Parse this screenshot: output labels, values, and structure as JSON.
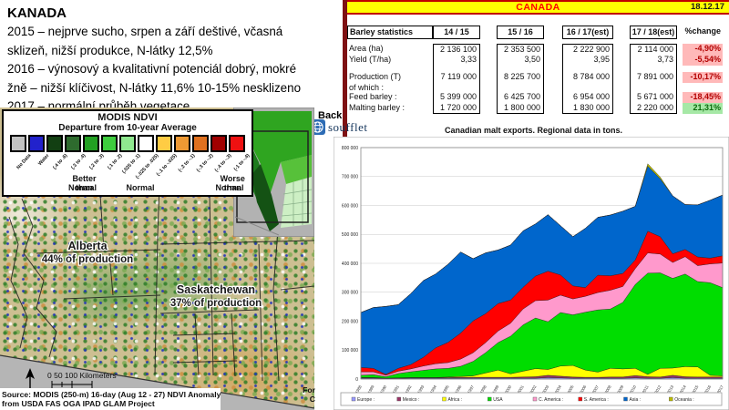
{
  "slide": {
    "title": "KANADA",
    "lines": [
      "2015 – nejprve sucho, srpen a září deštivé, včasná",
      "sklizeň, nižší produkce,  N-látky 12,5%",
      "2016 – výnosový a kvalitativní potenciál dobrý, mokré",
      "žně – nižší klíčivost, N-látky 11,6% 10-15% nesklizeno",
      "2017 – normální průběh vegetace"
    ]
  },
  "header": {
    "title": "CANADA",
    "date": "18.12.17"
  },
  "table": {
    "col_headers": [
      "Barley statistics",
      "14 / 15",
      "15 / 16",
      "16 / 17(est)",
      "17 / 18(est)",
      "%change"
    ],
    "rows": [
      {
        "label": "Area (ha)",
        "values": [
          "2 136 100",
          "2 353 500",
          "2 222 900",
          "2 114 000"
        ],
        "change": "-4,90%",
        "change_type": "neg"
      },
      {
        "label": "Yield (T/ha)",
        "values": [
          "3,33",
          "3,50",
          "3,95",
          "3,73"
        ],
        "change": "-5,54%",
        "change_type": "neg"
      },
      {
        "label": "",
        "values": [
          "",
          "",
          "",
          ""
        ],
        "change": "",
        "change_type": "none"
      },
      {
        "label": "Production (T)",
        "values": [
          "7 119 000",
          "8 225 700",
          "8 784 000",
          "7 891 000"
        ],
        "change": "-10,17%",
        "change_type": "neg"
      },
      {
        "label": "of which :",
        "values": [
          "",
          "",
          "",
          ""
        ],
        "change": "",
        "change_type": "none"
      },
      {
        "label": "Feed barley :",
        "values": [
          "5 399 000",
          "6 425 700",
          "6 954 000",
          "5 671 000"
        ],
        "change": "-18,45%",
        "change_type": "neg"
      },
      {
        "label": "Malting barley :",
        "values": [
          "1 720 000",
          "1 800 000",
          "1 830 000",
          "2 220 000"
        ],
        "change": "21,31%",
        "change_type": "pos"
      }
    ]
  },
  "logo": {
    "back_label": "Back",
    "text": "soufflet"
  },
  "chart_caption": "Canadian malt exports. Regional data in tons.",
  "map": {
    "legend_title": "MODIS NDVI",
    "legend_subtitle": "Departure from 10-year Average",
    "swatches": [
      {
        "label": "No Data",
        "color": "#c2c2c2"
      },
      {
        "label": "Water",
        "color": "#2222cc"
      },
      {
        "label": "(.4 to .6)",
        "color": "#123f12"
      },
      {
        "label": "(.3 to .4)",
        "color": "#2e6b2e"
      },
      {
        "label": "(.2 to .3)",
        "color": "#22a022"
      },
      {
        "label": "(.1 to .2)",
        "color": "#3ecc3e"
      },
      {
        "label": "(.025 to .1)",
        "color": "#8fe88f"
      },
      {
        "label": "(-.025 to .025)",
        "color": "#ffffff"
      },
      {
        "label": "(-.1 to -.025)",
        "color": "#ffcc44"
      },
      {
        "label": "(-.2 to -.1)",
        "color": "#ee9933"
      },
      {
        "label": "(-.3 to -.2)",
        "color": "#e0711f"
      },
      {
        "label": "(-.4 to -.3)",
        "color": "#a00000"
      },
      {
        "label": "(-1 to -.4)",
        "color": "#ee1111"
      }
    ],
    "scale_better": "Better than",
    "scale_better2": "Normal",
    "scale_normal": "Normal",
    "scale_worse": "Worse than",
    "scale_worse2": "Normal",
    "alberta_name": "Alberta",
    "alberta_sub": "44% of production",
    "sask_name": "Saskatchewan",
    "sask_sub": "37% of production",
    "scalebar_label": "0   50  100 Kilometers",
    "source_line1": "Source: MODIS (250-m) 16-day (Aug 12 - 27) NDVI Anomaly",
    "source_line2": "from USDA FAS OGA IPAD GLAM Project",
    "cut_line1": "For",
    "cut_line2": "C"
  },
  "chart_data": {
    "type": "area",
    "stacked": true,
    "title": "Canadian malt exports. Regional data in tons.",
    "x": [
      "1988",
      "1989",
      "1990",
      "1991",
      "1992",
      "1993",
      "1994",
      "1995",
      "1996",
      "1997",
      "1998",
      "1999",
      "2000",
      "2001",
      "2002",
      "2003",
      "2004",
      "2005",
      "2006",
      "2007",
      "2008",
      "2009",
      "2010",
      "2011",
      "2012",
      "2013",
      "2014",
      "2015",
      "2016",
      "2017"
    ],
    "ylim": [
      0,
      800000
    ],
    "ytick_step": 100000,
    "grid": true,
    "legend_position": "bottom",
    "series": [
      {
        "name": "Europe",
        "legend": "Europe :",
        "color": "#9999ff",
        "values": [
          3000,
          3000,
          2000,
          2000,
          3000,
          3000,
          3000,
          3000,
          3000,
          3000,
          3000,
          3000,
          3000,
          3000,
          3000,
          5000,
          4000,
          3000,
          3000,
          3000,
          3000,
          3000,
          4000,
          3000,
          3000,
          5000,
          3000,
          3000,
          3000,
          3000
        ]
      },
      {
        "name": "Mexico",
        "legend": "Mexico :",
        "color": "#993366",
        "values": [
          2000,
          2000,
          1000,
          2000,
          2000,
          2000,
          2000,
          2000,
          3000,
          3000,
          3000,
          3000,
          3000,
          4000,
          5000,
          8000,
          6000,
          4000,
          3000,
          3000,
          4000,
          4000,
          8000,
          5000,
          4000,
          8000,
          5000,
          4000,
          4000,
          4000
        ]
      },
      {
        "name": "Africa",
        "legend": "Africa :",
        "color": "#ffff00",
        "values": [
          0,
          0,
          0,
          0,
          0,
          0,
          0,
          2000,
          3000,
          5000,
          15000,
          25000,
          12000,
          20000,
          28000,
          20000,
          35000,
          40000,
          25000,
          18000,
          30000,
          28000,
          25000,
          8000,
          30000,
          25000,
          35000,
          35000,
          6000,
          4000
        ]
      },
      {
        "name": "USA",
        "legend": "USA",
        "color": "#00dd00",
        "values": [
          8000,
          10000,
          5000,
          15000,
          20000,
          25000,
          30000,
          30000,
          35000,
          50000,
          70000,
          95000,
          130000,
          160000,
          175000,
          165000,
          185000,
          175000,
          200000,
          215000,
          205000,
          230000,
          290000,
          350000,
          330000,
          310000,
          320000,
          295000,
          320000,
          305000
        ]
      },
      {
        "name": "C. America",
        "legend": "C. America :",
        "color": "#ff99cc",
        "values": [
          12000,
          10000,
          5000,
          8000,
          10000,
          15000,
          18000,
          20000,
          25000,
          30000,
          35000,
          40000,
          45000,
          55000,
          60000,
          75000,
          60000,
          55000,
          55000,
          60000,
          65000,
          55000,
          55000,
          70000,
          65000,
          55000,
          60000,
          55000,
          65000,
          85000
        ]
      },
      {
        "name": "S. America",
        "legend": "S. America :",
        "color": "#ff0000",
        "values": [
          15000,
          12000,
          3000,
          10000,
          15000,
          30000,
          55000,
          70000,
          90000,
          110000,
          100000,
          95000,
          80000,
          75000,
          85000,
          100000,
          70000,
          45000,
          30000,
          60000,
          50000,
          45000,
          30000,
          75000,
          60000,
          30000,
          25000,
          30000,
          20000,
          25000
        ]
      },
      {
        "name": "Asia",
        "legend": "Asia :",
        "color": "#0066cc",
        "values": [
          190000,
          210000,
          235000,
          220000,
          245000,
          265000,
          255000,
          270000,
          280000,
          215000,
          210000,
          185000,
          190000,
          195000,
          180000,
          195000,
          170000,
          170000,
          205000,
          200000,
          210000,
          215000,
          185000,
          225000,
          200000,
          200000,
          155000,
          180000,
          200000,
          210000
        ]
      },
      {
        "name": "Oceania",
        "legend": "Oceania :",
        "color": "#bbbb00",
        "values": [
          0,
          0,
          0,
          0,
          0,
          0,
          0,
          0,
          0,
          0,
          0,
          0,
          0,
          0,
          0,
          0,
          0,
          0,
          0,
          0,
          0,
          0,
          0,
          8000,
          6000,
          0,
          0,
          0,
          0,
          0
        ]
      }
    ]
  }
}
